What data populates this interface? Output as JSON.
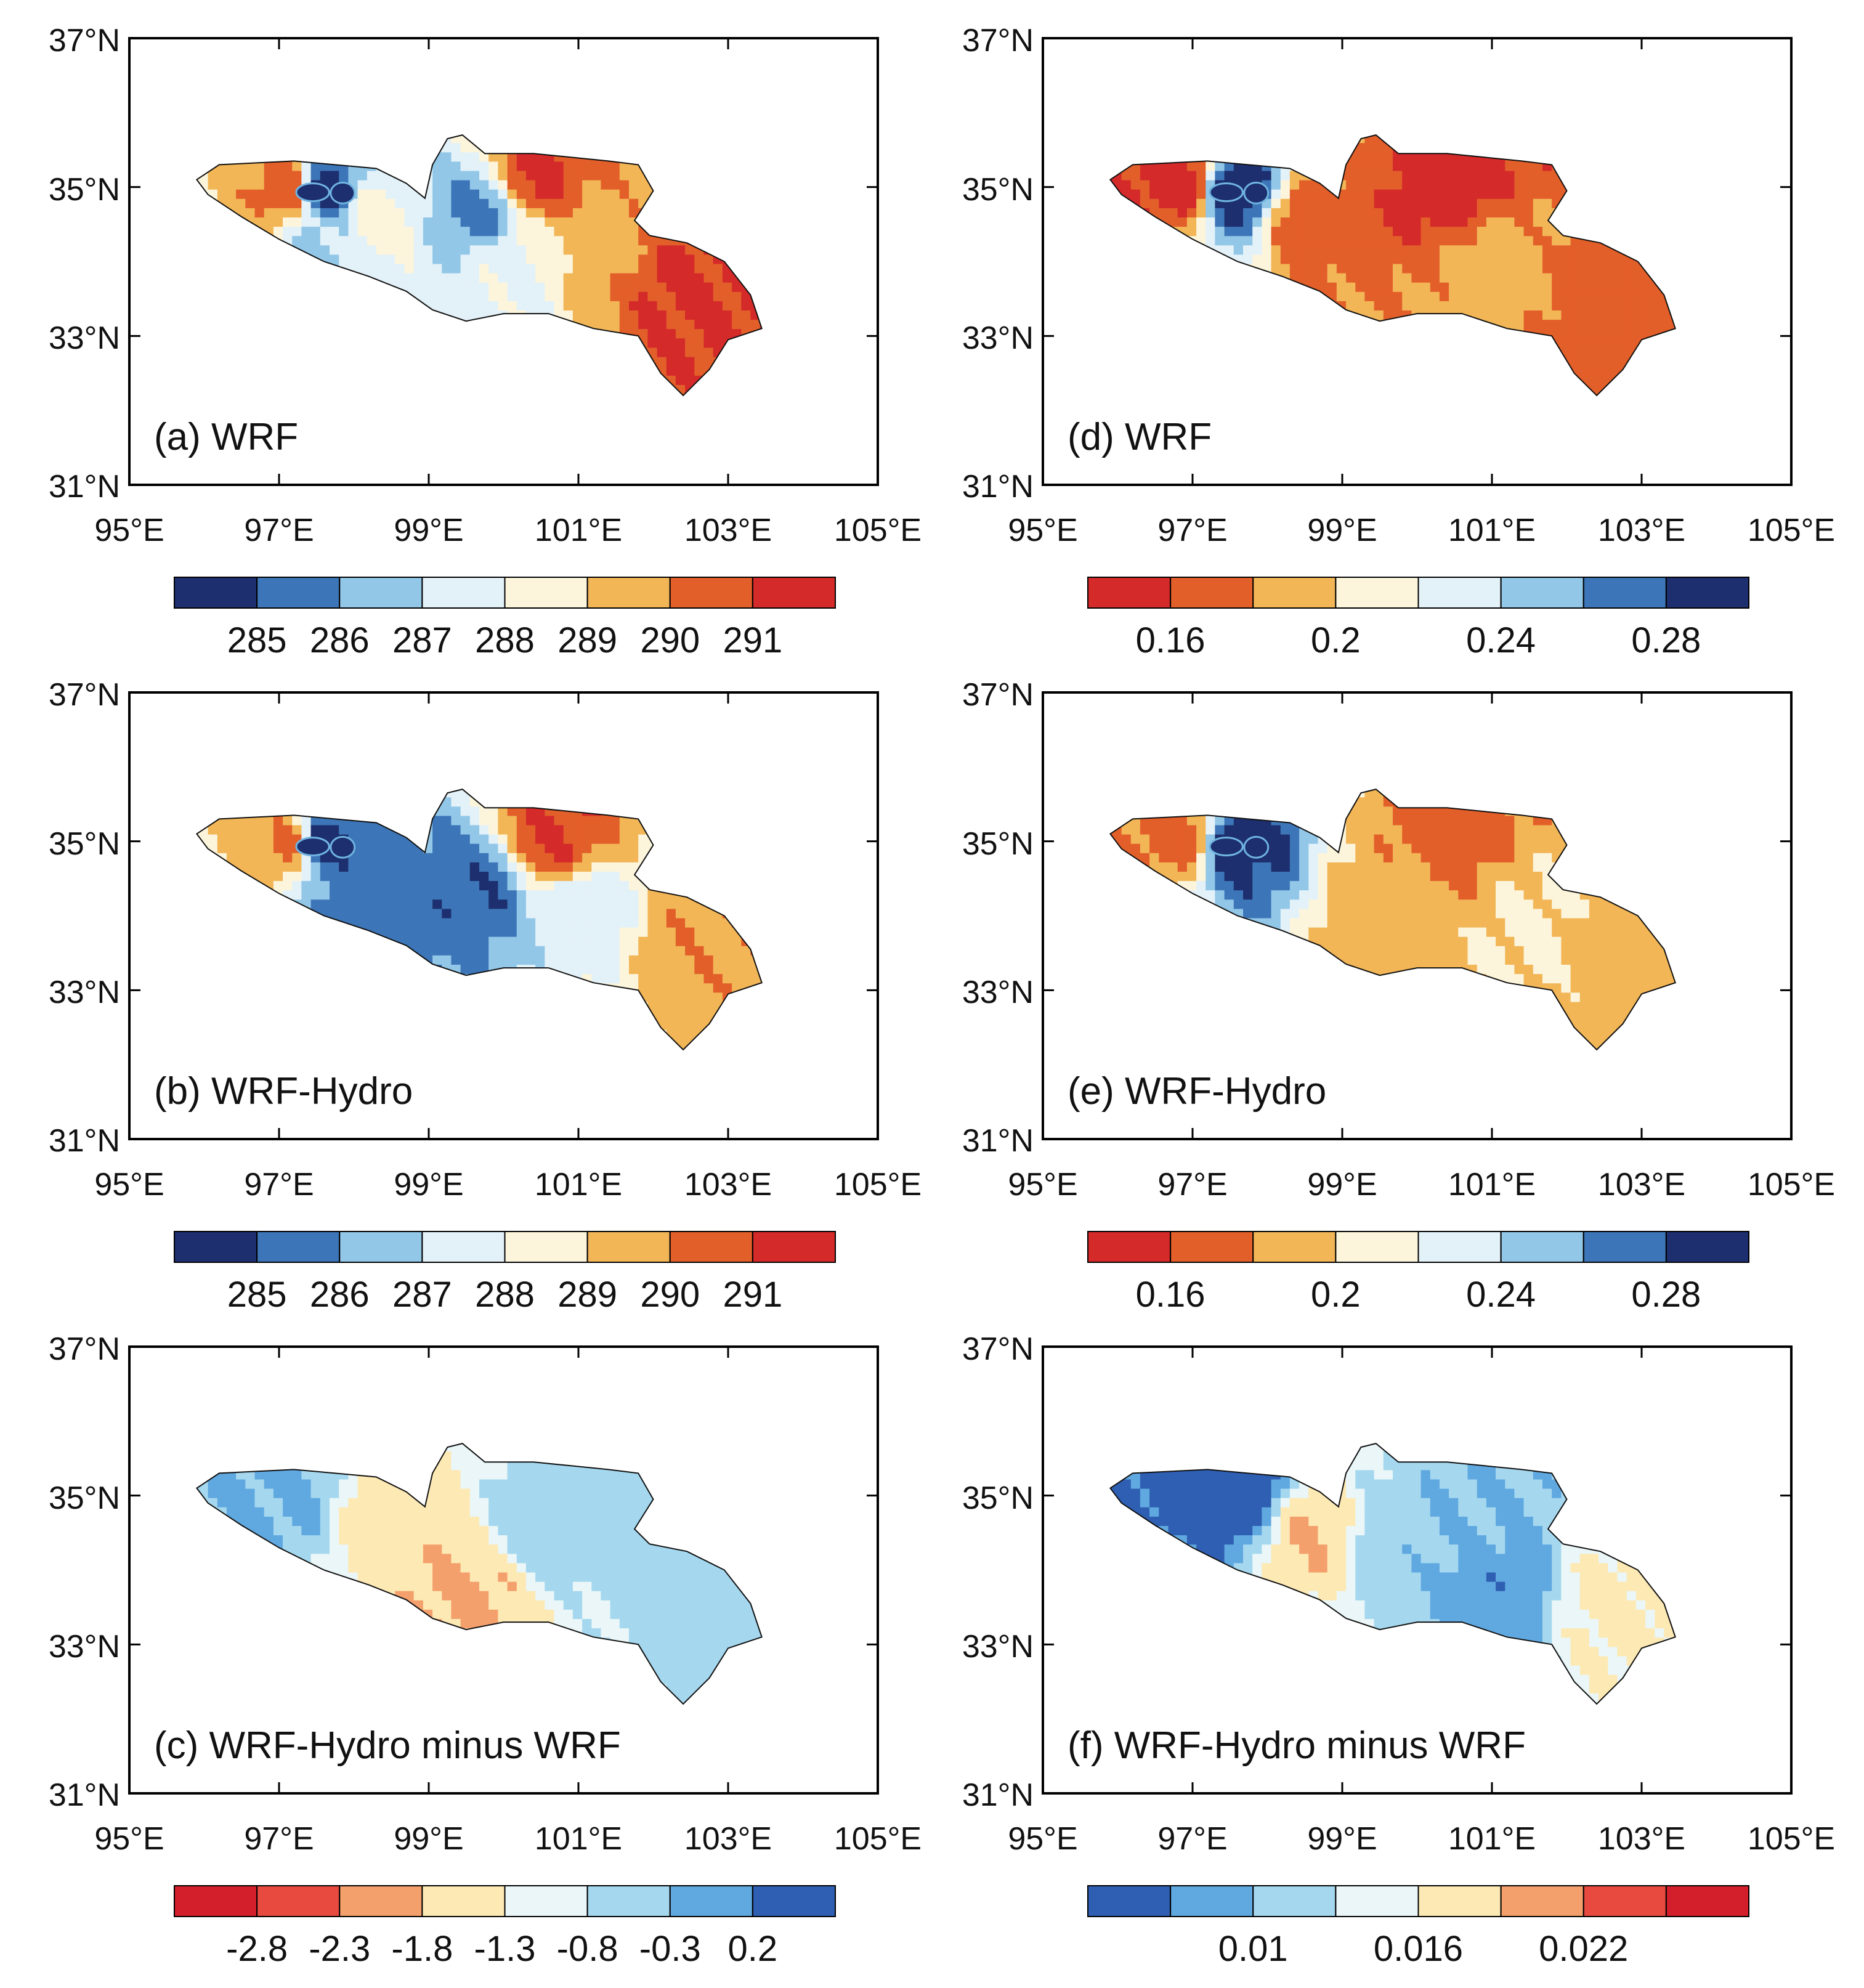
{
  "figure": {
    "x_axis_labels": [
      "95°E",
      "97°E",
      "99°E",
      "101°E",
      "103°E",
      "105°E"
    ],
    "y_axis_labels": [
      "31°N",
      "33°N",
      "35°N",
      "37°N"
    ],
    "x_range": [
      95,
      105
    ],
    "y_range": [
      31,
      37
    ]
  },
  "colorbars": {
    "temperature": {
      "colors": [
        "#1d2f6e",
        "#3d76b8",
        "#92c7e8",
        "#e3f1f8",
        "#fcf5dc",
        "#f2b657",
        "#e35f2a",
        "#d42a2a"
      ],
      "labels": [
        "285",
        "286",
        "287",
        "288",
        "289",
        "290",
        "291"
      ]
    },
    "albedo": {
      "colors": [
        "#d42a2a",
        "#e35f2a",
        "#f2b657",
        "#fcf5dc",
        "#e3f1f8",
        "#92c7e8",
        "#3d76b8",
        "#1d2f6e"
      ],
      "labels": [
        "0.16",
        "0.2",
        "0.24",
        "0.28"
      ]
    },
    "temp_diff": {
      "colors": [
        "#d21f2b",
        "#e84a3f",
        "#f4a06c",
        "#fde9b4",
        "#eaf6f7",
        "#a5d8ef",
        "#60a8e0",
        "#2f5fb2"
      ],
      "labels": [
        "-2.8",
        "-2.3",
        "-1.8",
        "-1.3",
        "-0.8",
        "-0.3",
        "0.2"
      ]
    },
    "albedo_diff": {
      "colors": [
        "#2f5fb2",
        "#60a8e0",
        "#a5d8ef",
        "#eaf6f7",
        "#fde9b4",
        "#f4a06c",
        "#e84a3f",
        "#d21f2b"
      ],
      "labels": [
        "0.01",
        "0.016",
        "0.022"
      ]
    }
  },
  "chart_data": [
    {
      "type": "heatmap",
      "panel": "a",
      "title": "(a) WRF",
      "variable": "temperature",
      "levels": [
        285,
        286,
        287,
        288,
        289,
        290,
        291
      ],
      "pattern": [
        {
          "lon": 97.5,
          "lat": 34.9,
          "value": 284.5
        },
        {
          "lon": 97.1,
          "lat": 34.9,
          "value": 290.8
        },
        {
          "lon": 98.2,
          "lat": 34.5,
          "value": 288.5
        },
        {
          "lon": 97.6,
          "lat": 34.2,
          "value": 286.8
        },
        {
          "lon": 99.6,
          "lat": 34.6,
          "value": 285.8
        },
        {
          "lon": 100.4,
          "lat": 35.1,
          "value": 291.2
        },
        {
          "lon": 100.0,
          "lat": 33.9,
          "value": 287.8
        },
        {
          "lon": 102.4,
          "lat": 33.6,
          "value": 291.2
        },
        {
          "lon": 101.2,
          "lat": 34.3,
          "value": 289.6
        }
      ]
    },
    {
      "type": "heatmap",
      "panel": "b",
      "title": "(b) WRF-Hydro",
      "variable": "temperature",
      "levels": [
        285,
        286,
        287,
        288,
        289,
        290,
        291
      ],
      "pattern": [
        {
          "lon": 97.5,
          "lat": 34.9,
          "value": 284.5
        },
        {
          "lon": 97.1,
          "lat": 34.9,
          "value": 290.4
        },
        {
          "lon": 98.0,
          "lat": 34.2,
          "value": 285.6
        },
        {
          "lon": 99.6,
          "lat": 34.3,
          "value": 285.2
        },
        {
          "lon": 100.6,
          "lat": 35.0,
          "value": 291.0
        },
        {
          "lon": 101.0,
          "lat": 34.0,
          "value": 287.4
        },
        {
          "lon": 102.5,
          "lat": 33.6,
          "value": 289.8
        }
      ]
    },
    {
      "type": "heatmap",
      "panel": "c",
      "title": "(c) WRF-Hydro minus WRF",
      "variable": "temp_diff",
      "levels": [
        -2.8,
        -2.3,
        -1.8,
        -1.3,
        -0.8,
        -0.3,
        0.2
      ],
      "pattern": [
        {
          "lon": 97.0,
          "lat": 34.9,
          "value": -0.2
        },
        {
          "lon": 98.4,
          "lat": 34.6,
          "value": -1.6
        },
        {
          "lon": 99.5,
          "lat": 33.6,
          "value": -1.9
        },
        {
          "lon": 100.5,
          "lat": 34.5,
          "value": -0.5
        },
        {
          "lon": 102.5,
          "lat": 33.5,
          "value": -0.6
        }
      ]
    },
    {
      "type": "heatmap",
      "panel": "d",
      "title": "(d) WRF",
      "variable": "albedo",
      "levels": [
        0.16,
        0.18,
        0.2,
        0.22,
        0.24,
        0.26,
        0.28
      ],
      "pattern": [
        {
          "lon": 97.5,
          "lat": 34.9,
          "value": 0.29
        },
        {
          "lon": 96.8,
          "lat": 35.0,
          "value": 0.15
        },
        {
          "lon": 100.4,
          "lat": 35.0,
          "value": 0.15
        },
        {
          "lon": 98.5,
          "lat": 34.5,
          "value": 0.17
        },
        {
          "lon": 101.0,
          "lat": 33.9,
          "value": 0.19
        },
        {
          "lon": 102.4,
          "lat": 33.6,
          "value": 0.17
        }
      ]
    },
    {
      "type": "heatmap",
      "panel": "e",
      "title": "(e) WRF-Hydro",
      "variable": "albedo",
      "levels": [
        0.16,
        0.18,
        0.2,
        0.22,
        0.24,
        0.26,
        0.28
      ],
      "pattern": [
        {
          "lon": 97.5,
          "lat": 34.9,
          "value": 0.29
        },
        {
          "lon": 96.8,
          "lat": 35.0,
          "value": 0.17
        },
        {
          "lon": 100.4,
          "lat": 35.0,
          "value": 0.17
        },
        {
          "lon": 99.5,
          "lat": 34.0,
          "value": 0.19
        },
        {
          "lon": 101.5,
          "lat": 33.8,
          "value": 0.205
        },
        {
          "lon": 102.5,
          "lat": 33.5,
          "value": 0.19
        }
      ]
    },
    {
      "type": "heatmap",
      "panel": "f",
      "title": "(f) WRF-Hydro minus WRF",
      "variable": "albedo_diff",
      "levels": [
        0.007,
        0.01,
        0.013,
        0.016,
        0.019,
        0.022,
        0.025
      ],
      "pattern": [
        {
          "lon": 97.5,
          "lat": 35.0,
          "value": 0.005
        },
        {
          "lon": 99.5,
          "lat": 34.3,
          "value": 0.011
        },
        {
          "lon": 100.6,
          "lat": 34.5,
          "value": 0.01
        },
        {
          "lon": 101.0,
          "lat": 33.7,
          "value": 0.008
        },
        {
          "lon": 102.6,
          "lat": 33.5,
          "value": 0.017
        },
        {
          "lon": 98.6,
          "lat": 34.4,
          "value": 0.019
        }
      ]
    }
  ]
}
